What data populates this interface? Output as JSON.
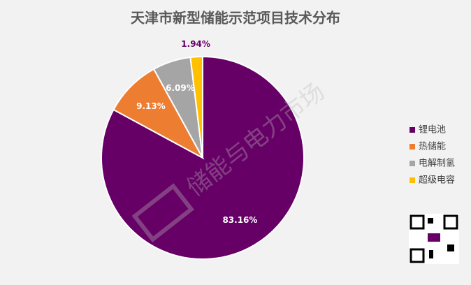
{
  "chart_data": {
    "type": "pie",
    "title": "天津市新型储能示范项目技术分布",
    "categories": [
      "锂电池",
      "热储能",
      "电解制氢",
      "超级电容"
    ],
    "values": [
      83.16,
      9.13,
      6.09,
      1.94
    ],
    "value_labels": [
      "83.16%",
      "9.13%",
      "6.09%",
      "1.94%"
    ],
    "colors": [
      "#660066",
      "#ed7d31",
      "#a5a5a5",
      "#ffc000"
    ],
    "legend": "right",
    "watermark": "储能与电力市场"
  }
}
